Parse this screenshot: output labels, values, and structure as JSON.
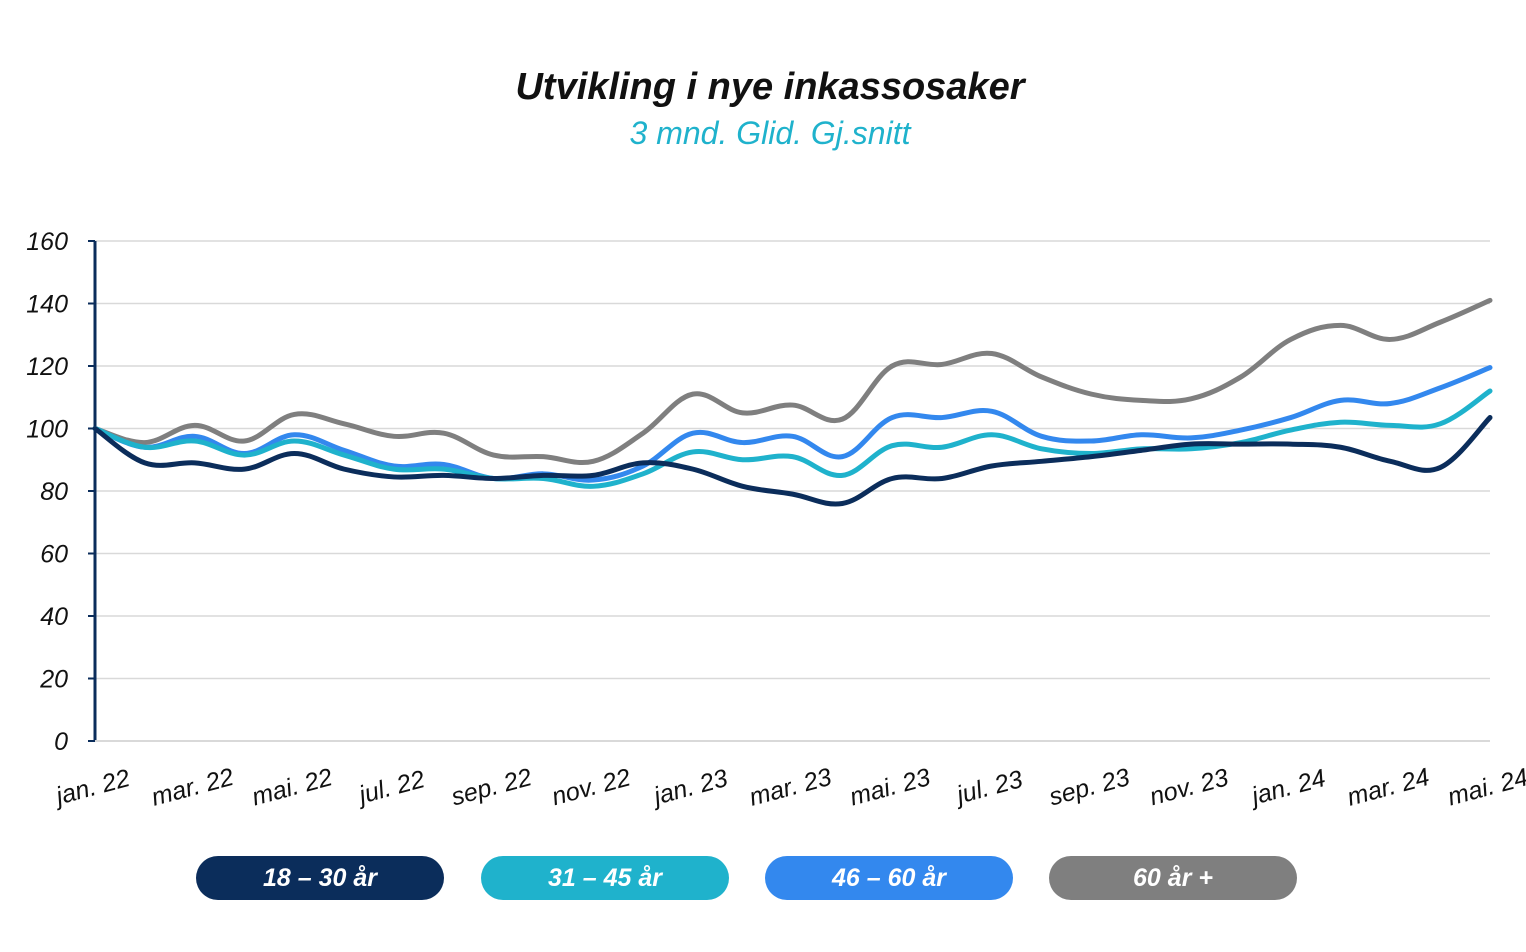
{
  "chart_data": {
    "type": "line",
    "title": "Utvikling i nye inkassosaker",
    "subtitle": "3 mnd. Glid. Gj.snitt",
    "xlabel": "",
    "ylabel": "",
    "ylim": [
      0,
      160
    ],
    "yticks": [
      0,
      20,
      40,
      60,
      80,
      100,
      120,
      140,
      160
    ],
    "grid": true,
    "legend_position": "bottom",
    "x": [
      "jan. 22",
      "feb. 22",
      "mar. 22",
      "apr. 22",
      "mai. 22",
      "jun. 22",
      "jul. 22",
      "aug. 22",
      "sep. 22",
      "okt. 22",
      "nov. 22",
      "des. 22",
      "jan. 23",
      "feb. 23",
      "mar. 23",
      "apr. 23",
      "mai. 23",
      "jun. 23",
      "jul. 23",
      "aug. 23",
      "sep. 23",
      "okt. 23",
      "nov. 23",
      "des. 23",
      "jan. 24",
      "feb. 24",
      "mar. 24",
      "apr. 24",
      "mai. 24"
    ],
    "xtick_labels": [
      "jan. 22",
      "mar. 22",
      "mai. 22",
      "jul. 22",
      "sep. 22",
      "nov. 22",
      "jan. 23",
      "mar. 23",
      "mai. 23",
      "jul. 23",
      "sep. 23",
      "nov. 23",
      "jan. 24",
      "mar. 24",
      "mai. 24"
    ],
    "series": [
      {
        "name": "18 – 30 år",
        "color": "#0b2d5b",
        "values": [
          100,
          89,
          89,
          87,
          92,
          87,
          84.5,
          85,
          84,
          85,
          85,
          89,
          87,
          81.5,
          79,
          76,
          84,
          84,
          88,
          89.5,
          91,
          93,
          95,
          95,
          95,
          94,
          89.5,
          87.5,
          103.5
        ]
      },
      {
        "name": "31 – 45 år",
        "color": "#1fb2cc",
        "values": [
          100,
          94,
          96,
          91.5,
          96,
          91.5,
          87,
          87,
          84,
          84,
          81.5,
          85.5,
          92.5,
          90,
          91,
          85,
          94.5,
          94,
          98,
          93.5,
          92,
          93.5,
          93.5,
          95.5,
          99.5,
          102,
          101,
          101.5,
          112
        ]
      },
      {
        "name": "46 – 60 år",
        "color": "#3388ee",
        "values": [
          100,
          94,
          97.5,
          92,
          98,
          93,
          88,
          88.5,
          84,
          85.5,
          83.5,
          88,
          98.5,
          95.5,
          97.5,
          91,
          103.5,
          103.5,
          105.5,
          97.5,
          96,
          98,
          97,
          99.5,
          103.5,
          109,
          108,
          113,
          119.5
        ]
      },
      {
        "name": "60 år +",
        "color": "#7f7f7f",
        "values": [
          100,
          95.5,
          101,
          96,
          104.5,
          101.5,
          97.5,
          98.5,
          91.5,
          91,
          89.5,
          98.5,
          111,
          105,
          107.5,
          103,
          120,
          120.5,
          124,
          116.5,
          111,
          109,
          109.5,
          116.5,
          128.5,
          133,
          128.5,
          134,
          141
        ]
      }
    ]
  }
}
